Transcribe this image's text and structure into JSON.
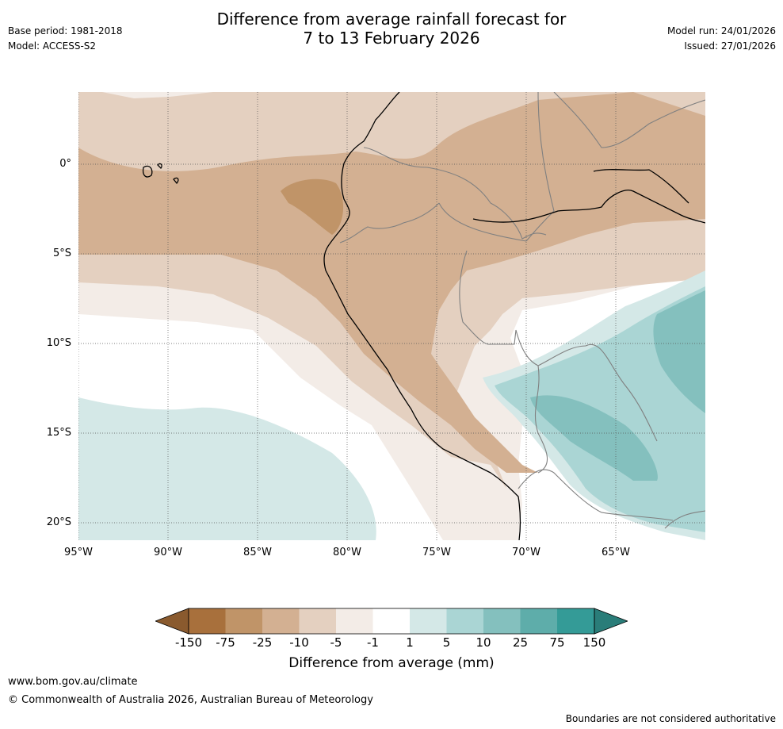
{
  "header": {
    "title_line1": "Difference from average rainfall forecast for",
    "title_line2": "7 to 13 February 2026",
    "base_period": "Base period: 1981-2018",
    "model": "Model: ACCESS-S2",
    "model_run": "Model run: 24/01/2026",
    "issued": "Issued: 27/01/2026"
  },
  "map": {
    "latitude_labels": [
      "0°",
      "5°S",
      "10°S",
      "15°S",
      "20°S"
    ],
    "longitude_labels": [
      "95°W",
      "90°W",
      "85°W",
      "80°W",
      "75°W",
      "70°W",
      "65°W"
    ]
  },
  "colorbar": {
    "title": "Difference from average (mm)",
    "tick_labels": [
      "-150",
      "-75",
      "-25",
      "-10",
      "-5",
      "-1",
      "1",
      "5",
      "10",
      "25",
      "75",
      "150"
    ],
    "colors": [
      "#8a5a2e",
      "#a8703c",
      "#c09468",
      "#d3b092",
      "#e4d0c0",
      "#f3ece7",
      "#ffffff",
      "#d4e8e7",
      "#aad5d4",
      "#84c0be",
      "#5eadaa",
      "#349b97",
      "#2a7d79"
    ]
  },
  "footer": {
    "url": "www.bom.gov.au/climate",
    "copyright": "© Commonwealth of Australia 2026, Australian Bureau of Meteorology",
    "disclaimer": "Boundaries are not considered authoritative"
  }
}
